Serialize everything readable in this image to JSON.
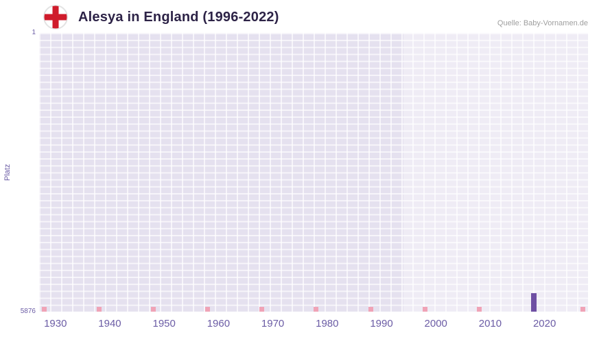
{
  "header": {
    "title": "Alesya in England (1996-2022)",
    "source": "Quelle: Baby-Vornamen.de"
  },
  "colors": {
    "title_text": "#2d2347",
    "source_text": "#9e9e9e",
    "axis_text": "#6b5ca5",
    "plot_bg": "#e5e1ef",
    "grid_line": "rgba(255,255,255,0.68)",
    "highlight_overlay": "rgba(255,255,255,0.38)",
    "bar": "#6e4fa3",
    "marker": "#f0a3b6",
    "flag_red": "#cf1b2b",
    "flag_ring": "#e3e3e3"
  },
  "chart_data": {
    "type": "bar",
    "title": "Alesya in England (1996-2022)",
    "source": "Quelle: Baby-Vornamen.de",
    "xlabel": "",
    "ylabel": "Platz",
    "y_tick_top": "1",
    "y_tick_bottom": "5876",
    "y_domain": [
      1,
      5876
    ],
    "y_inverted": true,
    "x_domain": [
      1927,
      2028
    ],
    "x_ticks": [
      "1930",
      "1940",
      "1950",
      "1960",
      "1970",
      "1980",
      "1990",
      "2000",
      "2010",
      "2020"
    ],
    "grid": true,
    "legend": false,
    "highlight_region": [
      1994,
      2028
    ],
    "bars": [
      {
        "year": 2018,
        "rank": 5490
      }
    ],
    "no_data_marker_years": [
      1928,
      1938,
      1948,
      1958,
      1968,
      1978,
      1988,
      1998,
      2008,
      2027
    ]
  }
}
